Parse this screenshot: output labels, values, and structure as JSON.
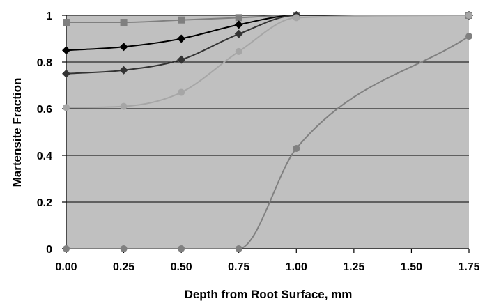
{
  "chart_data": {
    "type": "line",
    "title": "",
    "xlabel": "Depth from Root Surface, mm",
    "ylabel": "Martensite Fraction",
    "x_ticks": [
      "0.00",
      "0.25",
      "0.50",
      "0.75",
      "1.00",
      "1.25",
      "1.50",
      "1.75"
    ],
    "y_ticks": [
      "0",
      "0.2",
      "0.4",
      "0.6",
      "0.8",
      "1"
    ],
    "xlim": [
      0,
      1.75
    ],
    "ylim": [
      0,
      1
    ],
    "grid": "horizontal",
    "legend": "none",
    "plot_background": "#c0c0c0",
    "series": [
      {
        "color": "#7f7f7f",
        "marker": "square",
        "x": [
          0,
          0.25,
          0.5,
          0.75,
          1.0,
          1.75
        ],
        "y": [
          0.97,
          0.97,
          0.98,
          0.99,
          1.0,
          1.0
        ]
      },
      {
        "color": "#000000",
        "marker": "diamond",
        "x": [
          0,
          0.25,
          0.5,
          0.75,
          1.0,
          1.75
        ],
        "y": [
          0.85,
          0.865,
          0.9,
          0.96,
          1.0,
          1.0
        ]
      },
      {
        "color": "#333333",
        "marker": "diamond",
        "x": [
          0,
          0.25,
          0.5,
          0.75,
          1.0,
          1.75
        ],
        "y": [
          0.75,
          0.765,
          0.81,
          0.92,
          1.0,
          1.0
        ]
      },
      {
        "color": "#a6a6a6",
        "marker": "circle",
        "x": [
          0,
          0.25,
          0.5,
          0.75,
          1.0,
          1.75
        ],
        "y": [
          0.605,
          0.61,
          0.67,
          0.845,
          0.99,
          1.0
        ]
      },
      {
        "color": "#808080",
        "marker": "circle",
        "x": [
          0,
          0.25,
          0.5,
          0.75,
          1.0,
          1.75
        ],
        "y": [
          0,
          0,
          0,
          0,
          0.43,
          0.91
        ]
      }
    ]
  }
}
